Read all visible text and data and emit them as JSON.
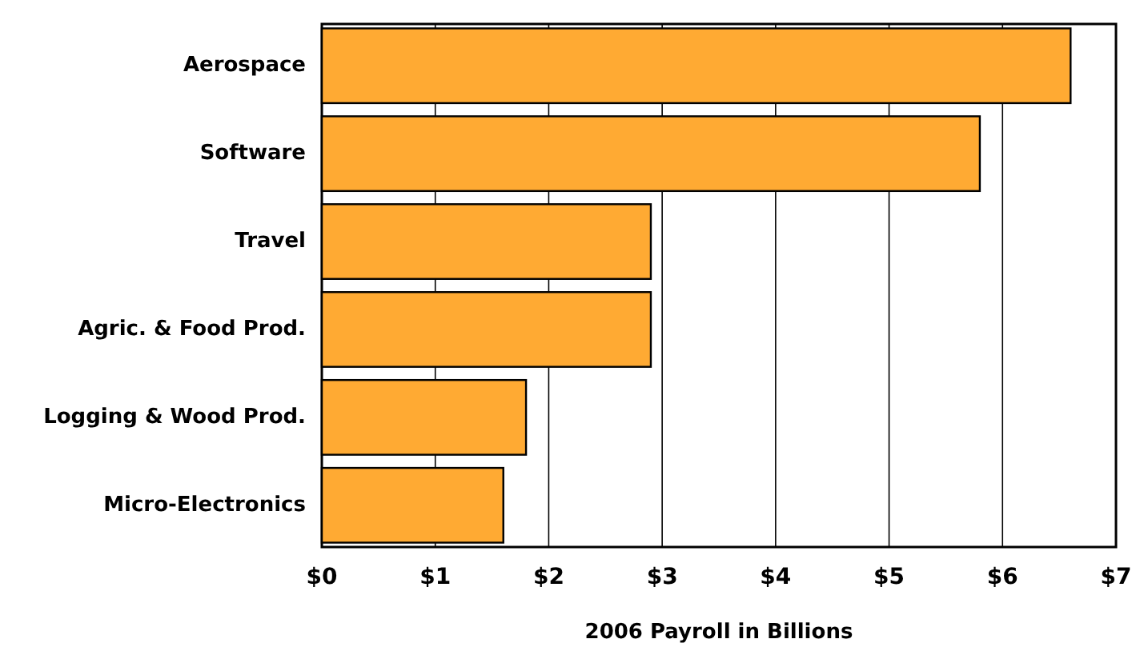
{
  "chart_data": {
    "type": "bar",
    "orientation": "horizontal",
    "xlabel": "2006 Payroll in Billions",
    "categories": [
      "Aerospace",
      "Software",
      "Travel",
      "Agric. & Food Prod.",
      "Logging & Wood Prod.",
      "Micro-Electronics"
    ],
    "values": [
      6.6,
      5.8,
      2.9,
      2.9,
      1.8,
      1.6
    ],
    "color": "#ffaa33",
    "xlim": [
      0,
      7
    ],
    "xticks": [
      {
        "value": 0,
        "label": "$0"
      },
      {
        "value": 1,
        "label": "$1"
      },
      {
        "value": 2,
        "label": "$2"
      },
      {
        "value": 3,
        "label": "$3"
      },
      {
        "value": 4,
        "label": "$4"
      },
      {
        "value": 5,
        "label": "$5"
      },
      {
        "value": 6,
        "label": "$6"
      },
      {
        "value": 7,
        "label": "$7"
      }
    ],
    "grid": "x"
  }
}
